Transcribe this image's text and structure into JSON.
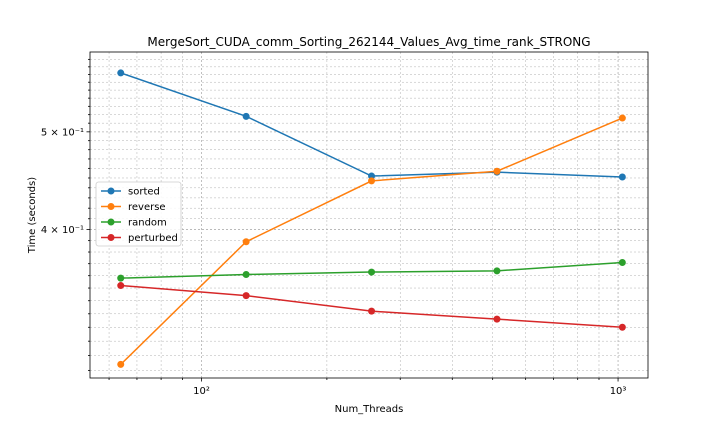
{
  "chart_data": {
    "type": "line",
    "title": "MergeSort_CUDA_comm_Sorting_262144_Values_Avg_time_rank_STRONG",
    "xlabel": "Num_Threads",
    "ylabel": "Time (seconds)",
    "xscale": "log",
    "yscale": "log",
    "xlim": [
      54,
      1180
    ],
    "ylim": [
      0.285,
      0.6
    ],
    "x": [
      64,
      128,
      256,
      512,
      1024
    ],
    "x_ticks": [
      {
        "value": 100,
        "label": "10²"
      },
      {
        "value": 1000,
        "label": "10³"
      }
    ],
    "y_ticks": [
      {
        "value": 0.4,
        "label": "4 × 10⁻¹"
      },
      {
        "value": 0.5,
        "label": "5 × 10⁻¹"
      }
    ],
    "grid": true,
    "legend_position": "center-left",
    "series": [
      {
        "name": "sorted",
        "color": "#1f77b4",
        "values": [
          0.572,
          0.518,
          0.452,
          0.456,
          0.451
        ]
      },
      {
        "name": "reverse",
        "color": "#ff7f0e",
        "values": [
          0.294,
          0.389,
          0.447,
          0.457,
          0.516
        ]
      },
      {
        "name": "random",
        "color": "#2ca02c",
        "values": [
          0.358,
          0.361,
          0.363,
          0.364,
          0.371
        ]
      },
      {
        "name": "perturbed",
        "color": "#d62728",
        "values": [
          0.352,
          0.344,
          0.332,
          0.326,
          0.32
        ]
      }
    ]
  }
}
